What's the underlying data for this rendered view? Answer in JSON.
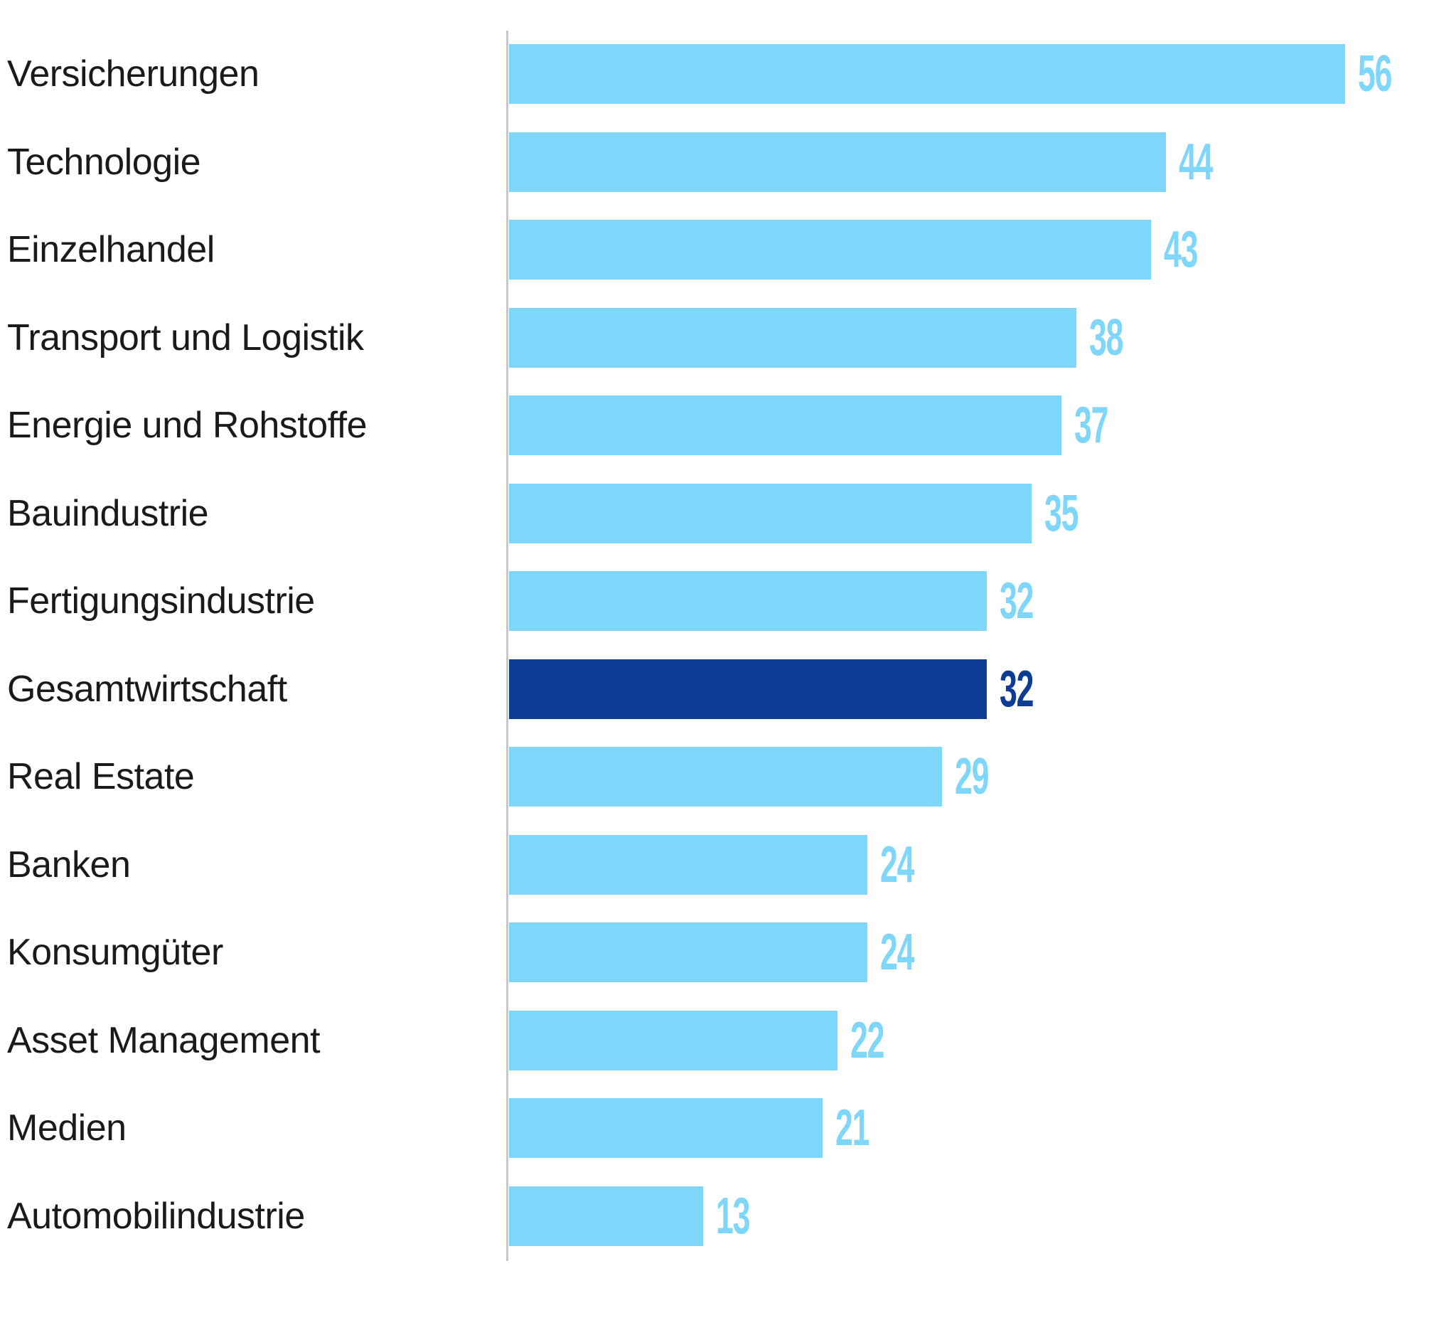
{
  "chart_data": {
    "type": "bar",
    "orientation": "horizontal",
    "title": "",
    "xlabel": "",
    "ylabel": "",
    "xlim": [
      0,
      63
    ],
    "grid": false,
    "legend": "none",
    "value_label_position": "outside-right",
    "categories": [
      "Versicherungen",
      "Technologie",
      "Einzelhandel",
      "Transport und Logistik",
      "Energie und Rohstoffe",
      "Bauindustrie",
      "Fertigungsindustrie",
      "Gesamtwirtschaft",
      "Real Estate",
      "Banken",
      "Konsumgüter",
      "Asset Management",
      "Medien",
      "Automobilindustrie"
    ],
    "values": [
      56,
      44,
      43,
      38,
      37,
      35,
      32,
      32,
      29,
      24,
      24,
      22,
      21,
      13
    ],
    "items": [
      {
        "label": "Versicherungen",
        "value": 56,
        "highlighted": false
      },
      {
        "label": "Technologie",
        "value": 44,
        "highlighted": false
      },
      {
        "label": "Einzelhandel",
        "value": 43,
        "highlighted": false
      },
      {
        "label": "Transport und Logistik",
        "value": 38,
        "highlighted": false
      },
      {
        "label": "Energie und Rohstoffe",
        "value": 37,
        "highlighted": false
      },
      {
        "label": "Bauindustrie",
        "value": 35,
        "highlighted": false
      },
      {
        "label": "Fertigungsindustrie",
        "value": 32,
        "highlighted": false
      },
      {
        "label": "Gesamtwirtschaft",
        "value": 32,
        "highlighted": true
      },
      {
        "label": "Real Estate",
        "value": 29,
        "highlighted": false
      },
      {
        "label": "Banken",
        "value": 24,
        "highlighted": false
      },
      {
        "label": "Konsumgüter",
        "value": 24,
        "highlighted": false
      },
      {
        "label": "Asset Management",
        "value": 22,
        "highlighted": false
      },
      {
        "label": "Medien",
        "value": 21,
        "highlighted": false
      },
      {
        "label": "Automobilindustrie",
        "value": 13,
        "highlighted": false
      }
    ],
    "highlight_category": "Gesamtwirtschaft",
    "colors": {
      "bar": "#7ed6fb",
      "bar_highlight": "#0c3c94",
      "value_label": "#7ed6fb",
      "value_label_highlight": "#0c3c94",
      "category_label": "#1a1a1a",
      "axis_line": "#c9c9c9",
      "background": "#ffffff"
    }
  }
}
